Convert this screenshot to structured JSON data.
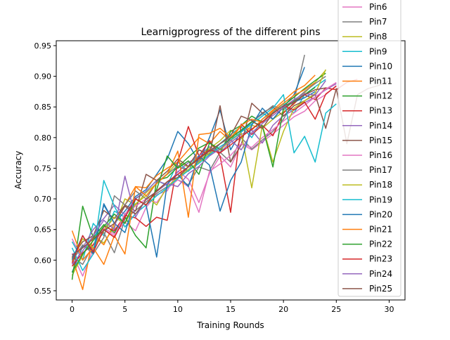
{
  "chart_data": {
    "type": "line",
    "title": "Learnigprogress of the different pins",
    "xlabel": "Training Rounds",
    "ylabel": "Accuracy",
    "xlim": [
      -1.5,
      31.5
    ],
    "ylim": [
      0.535,
      0.958
    ],
    "xticks": [
      0,
      5,
      10,
      15,
      20,
      25,
      30
    ],
    "yticks": [
      0.55,
      0.6,
      0.65,
      0.7,
      0.75,
      0.8,
      0.85,
      0.9,
      0.95
    ],
    "ytick_labels": [
      "0.55",
      "0.60",
      "0.65",
      "0.70",
      "0.75",
      "0.80",
      "0.85",
      "0.90",
      "0.95"
    ],
    "legend_position": "top-right",
    "grid": false,
    "series": [
      {
        "name": "Pin6",
        "color": "#e377c2",
        "values": [
          0.611,
          0.574,
          0.618,
          0.652,
          0.643,
          0.662,
          0.648,
          0.686,
          0.707,
          0.713,
          0.745,
          0.732,
          0.694,
          0.741,
          0.77,
          0.752,
          0.79,
          0.78,
          0.793,
          0.806,
          0.82,
          0.834,
          0.843,
          0.86,
          0.87,
          0.885
        ]
      },
      {
        "name": "Pin7",
        "color": "#7f7f7f",
        "values": [
          0.606,
          0.593,
          0.625,
          0.645,
          0.612,
          0.667,
          0.681,
          0.695,
          0.709,
          0.72,
          0.731,
          0.723,
          0.752,
          0.746,
          0.776,
          0.76,
          0.8,
          0.781,
          0.796,
          0.81,
          0.83,
          0.86,
          0.935
        ]
      },
      {
        "name": "Pin8",
        "color": "#bcbd22",
        "values": [
          0.575,
          0.608,
          0.64,
          0.628,
          0.655,
          0.7,
          0.69,
          0.71,
          0.725,
          0.741,
          0.76,
          0.752,
          0.77,
          0.782,
          0.795,
          0.812,
          0.8,
          0.82,
          0.815,
          0.83,
          0.842,
          0.855,
          0.873,
          0.89,
          0.91
        ]
      },
      {
        "name": "Pin9",
        "color": "#17becf",
        "values": [
          0.63,
          0.6,
          0.66,
          0.64,
          0.68,
          0.67,
          0.7,
          0.712,
          0.73,
          0.722,
          0.76,
          0.745,
          0.78,
          0.771,
          0.79,
          0.805,
          0.818,
          0.8,
          0.83,
          0.842,
          0.855,
          0.84,
          0.87,
          0.883,
          0.895
        ]
      },
      {
        "name": "Pin10",
        "color": "#1f77b4",
        "values": [
          0.58,
          0.623,
          0.615,
          0.69,
          0.66,
          0.68,
          0.704,
          0.715,
          0.74,
          0.765,
          0.81,
          0.79,
          0.76,
          0.8,
          0.845,
          0.78,
          0.81,
          0.825,
          0.84,
          0.83,
          0.85,
          0.87,
          0.915
        ]
      },
      {
        "name": "Pin11",
        "color": "#ff7f0e",
        "values": [
          0.605,
          0.552,
          0.64,
          0.625,
          0.66,
          0.69,
          0.72,
          0.718,
          0.738,
          0.75,
          0.76,
          0.78,
          0.8,
          0.79,
          0.81,
          0.795,
          0.82,
          0.812,
          0.83,
          0.845,
          0.86,
          0.875,
          0.885,
          0.902
        ]
      },
      {
        "name": "Pin12",
        "color": "#2ca02c",
        "values": [
          0.568,
          0.688,
          0.637,
          0.658,
          0.645,
          0.671,
          0.64,
          0.62,
          0.73,
          0.735,
          0.752,
          0.768,
          0.783,
          0.792,
          0.775,
          0.81,
          0.82,
          0.835,
          0.825,
          0.84,
          0.852,
          0.866,
          0.88,
          0.893,
          0.905
        ]
      },
      {
        "name": "Pin13",
        "color": "#d62728",
        "values": [
          0.59,
          0.612,
          0.625,
          0.655,
          0.648,
          0.673,
          0.669,
          0.655,
          0.67,
          0.665,
          0.76,
          0.818,
          0.77,
          0.795,
          0.77,
          0.678,
          0.822,
          0.805,
          0.82,
          0.803,
          0.84,
          0.856,
          0.87,
          0.862,
          0.881,
          0.878,
          0.89,
          0.895
        ]
      },
      {
        "name": "Pin14",
        "color": "#9467bd",
        "values": [
          0.609,
          0.62,
          0.65,
          0.668,
          0.69,
          0.674,
          0.701,
          0.712,
          0.73,
          0.723,
          0.744,
          0.759,
          0.77,
          0.785,
          0.776,
          0.792,
          0.805,
          0.812,
          0.791,
          0.82,
          0.836,
          0.845,
          0.857,
          0.866,
          0.878,
          0.888
        ]
      },
      {
        "name": "Pin15",
        "color": "#8c564b",
        "values": [
          0.605,
          0.63,
          0.64,
          0.681,
          0.668,
          0.69,
          0.68,
          0.74,
          0.73,
          0.745,
          0.765,
          0.753,
          0.78,
          0.772,
          0.852,
          0.76,
          0.788,
          0.856,
          0.84,
          0.85,
          0.835,
          0.852,
          0.86,
          0.87,
          0.815,
          0.88,
          0.79,
          0.87,
          0.88,
          0.885,
          0.892
        ]
      },
      {
        "name": "Pin16",
        "color": "#e377c2",
        "values": [
          0.635,
          0.6,
          0.62,
          0.65,
          0.64,
          0.676,
          0.688,
          0.7,
          0.694,
          0.717,
          0.731,
          0.72,
          0.678,
          0.745,
          0.757,
          0.771,
          0.79,
          0.784,
          0.8,
          0.813,
          0.827,
          0.84,
          0.853,
          0.866,
          0.879,
          0.89
        ]
      },
      {
        "name": "Pin17",
        "color": "#7f7f7f",
        "values": [
          0.598,
          0.625,
          0.61,
          0.637,
          0.705,
          0.69,
          0.713,
          0.7,
          0.727,
          0.74,
          0.754,
          0.745,
          0.762,
          0.775,
          0.79,
          0.8,
          0.812,
          0.826,
          0.838,
          0.852,
          0.845,
          0.86,
          0.875,
          0.888,
          0.9
        ]
      },
      {
        "name": "Pin18",
        "color": "#bcbd22",
        "values": [
          0.6,
          0.635,
          0.62,
          0.648,
          0.67,
          0.66,
          0.692,
          0.705,
          0.69,
          0.72,
          0.735,
          0.748,
          0.76,
          0.775,
          0.78,
          0.795,
          0.808,
          0.718,
          0.82,
          0.76,
          0.81,
          0.848,
          0.86,
          0.872,
          0.911
        ]
      },
      {
        "name": "Pin19",
        "color": "#17becf",
        "values": [
          0.62,
          0.583,
          0.61,
          0.73,
          0.688,
          0.654,
          0.676,
          0.69,
          0.705,
          0.718,
          0.733,
          0.746,
          0.758,
          0.772,
          0.785,
          0.796,
          0.809,
          0.822,
          0.835,
          0.848,
          0.87,
          0.775,
          0.802,
          0.76,
          0.84,
          0.855
        ]
      },
      {
        "name": "Pin20",
        "color": "#1f77b4",
        "values": [
          0.601,
          0.64,
          0.61,
          0.692,
          0.66,
          0.645,
          0.7,
          0.69,
          0.605,
          0.725,
          0.74,
          0.72,
          0.77,
          0.755,
          0.68,
          0.73,
          0.76,
          0.82,
          0.848,
          0.83,
          0.85,
          0.858,
          0.865,
          0.875
        ]
      },
      {
        "name": "Pin21",
        "color": "#ff7f0e",
        "values": [
          0.648,
          0.6,
          0.62,
          0.593,
          0.64,
          0.61,
          0.72,
          0.705,
          0.725,
          0.74,
          0.778,
          0.67,
          0.805,
          0.807,
          0.815,
          0.8,
          0.82,
          0.83,
          0.825,
          0.843,
          0.856,
          0.869,
          0.878,
          0.89
        ]
      },
      {
        "name": "Pin22",
        "color": "#2ca02c",
        "values": [
          0.58,
          0.61,
          0.632,
          0.655,
          0.675,
          0.66,
          0.7,
          0.69,
          0.715,
          0.77,
          0.75,
          0.762,
          0.74,
          0.791,
          0.781,
          0.799,
          0.812,
          0.826,
          0.819,
          0.752,
          0.848,
          0.859,
          0.87,
          0.882
        ]
      },
      {
        "name": "Pin23",
        "color": "#d62728",
        "values": [
          0.595,
          0.64,
          0.613,
          0.65,
          0.637,
          0.67,
          0.7,
          0.69,
          0.713,
          0.728,
          0.74,
          0.752,
          0.767,
          0.78,
          0.775,
          0.788,
          0.801,
          0.814,
          0.826,
          0.839,
          0.852,
          0.845,
          0.858,
          0.83,
          0.871,
          0.884
        ]
      },
      {
        "name": "Pin24",
        "color": "#9467bd",
        "values": [
          0.593,
          0.615,
          0.64,
          0.665,
          0.65,
          0.737,
          0.67,
          0.7,
          0.712,
          0.725,
          0.72,
          0.741,
          0.753,
          0.77,
          0.782,
          0.796,
          0.78,
          0.808,
          0.823,
          0.836,
          0.849,
          0.862,
          0.872,
          0.869,
          0.893
        ]
      },
      {
        "name": "Pin25",
        "color": "#8c564b",
        "values": [
          0.608,
          0.62,
          0.635,
          0.648,
          0.66,
          0.688,
          0.675,
          0.699,
          0.712,
          0.728,
          0.735,
          0.752,
          0.765,
          0.778,
          0.79,
          0.803,
          0.835,
          0.828,
          0.815,
          0.84,
          0.852,
          0.858,
          0.87,
          0.878,
          0.881
        ]
      }
    ]
  }
}
